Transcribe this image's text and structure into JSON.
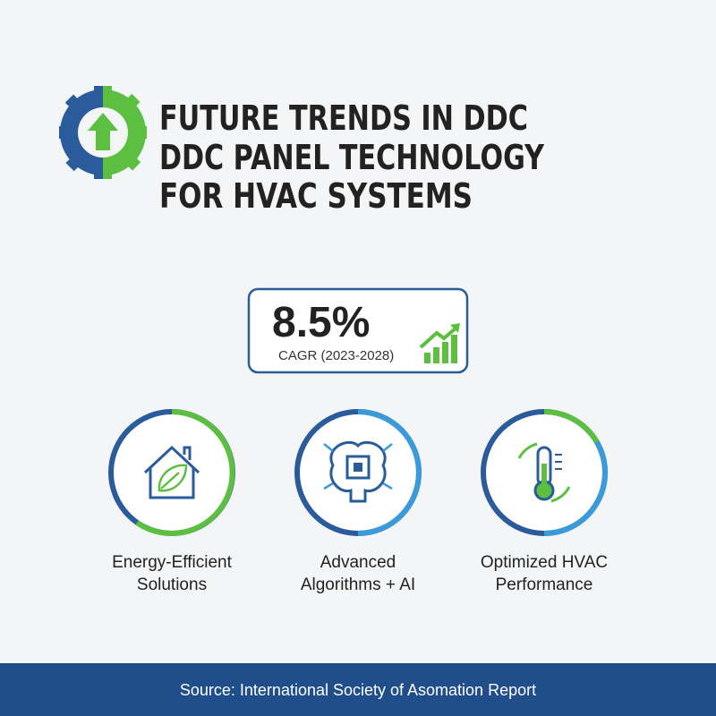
{
  "header": {
    "title_lines": [
      "FUTURE TRENDS IN DDC",
      "DDC PANEL TECHNOLOGY",
      "FOR HVAC SYSTEMS"
    ]
  },
  "stat": {
    "value": "8.5%",
    "label": "CAGR (2023-2028)"
  },
  "features": [
    {
      "label_lines": [
        "Energy-Efficient",
        "Solutions"
      ]
    },
    {
      "label_lines": [
        "Advanced",
        "Algorithms + AI"
      ]
    },
    {
      "label_lines": [
        "Optimized HVAC",
        "Performance"
      ]
    }
  ],
  "footer": {
    "source": "Source: International Society of Asomation Report"
  }
}
